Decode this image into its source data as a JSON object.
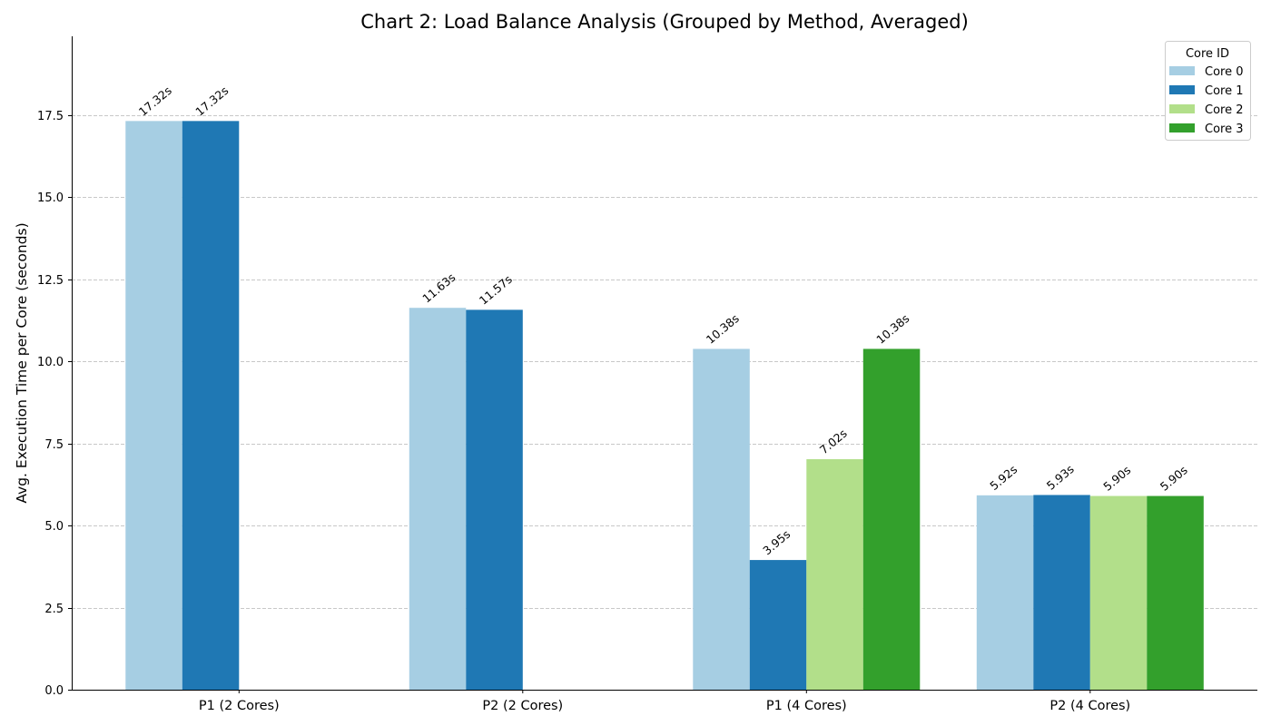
{
  "chart_data": {
    "type": "bar",
    "title": "Chart 2: Load Balance Analysis (Grouped by Method, Averaged)",
    "xlabel": "",
    "ylabel": "Avg. Execution Time per Core (seconds)",
    "categories": [
      "P1 (2 Cores)",
      "P2 (2 Cores)",
      "P1 (4 Cores)",
      "P2 (4 Cores)"
    ],
    "series": [
      {
        "name": "Core 0",
        "values": [
          17.32,
          11.63,
          10.38,
          5.92
        ],
        "labels": [
          "17.32s",
          "11.63s",
          "10.38s",
          "5.92s"
        ],
        "color": "#a6cee3"
      },
      {
        "name": "Core 1",
        "values": [
          17.32,
          11.57,
          3.95,
          5.93
        ],
        "labels": [
          "17.32s",
          "11.57s",
          "3.95s",
          "5.93s"
        ],
        "color": "#1f78b4"
      },
      {
        "name": "Core 2",
        "values": [
          null,
          null,
          7.02,
          5.9
        ],
        "labels": [
          "",
          "",
          "7.02s",
          "5.90s"
        ],
        "color": "#b2df8a"
      },
      {
        "name": "Core 3",
        "values": [
          null,
          null,
          10.38,
          5.9
        ],
        "labels": [
          "",
          "",
          "10.38s",
          "5.90s"
        ],
        "color": "#33a02c"
      }
    ],
    "ylim": [
      0,
      19.9
    ],
    "yticks": [
      0,
      2.5,
      5,
      7.5,
      10,
      12.5,
      15,
      17.5
    ],
    "ytick_labels": [
      "0.0",
      "2.5",
      "5.0",
      "7.5",
      "10.0",
      "12.5",
      "15.0",
      "17.5"
    ],
    "grid": "y-dashed",
    "legend": {
      "title": "Core ID",
      "placement": "top-right"
    }
  }
}
